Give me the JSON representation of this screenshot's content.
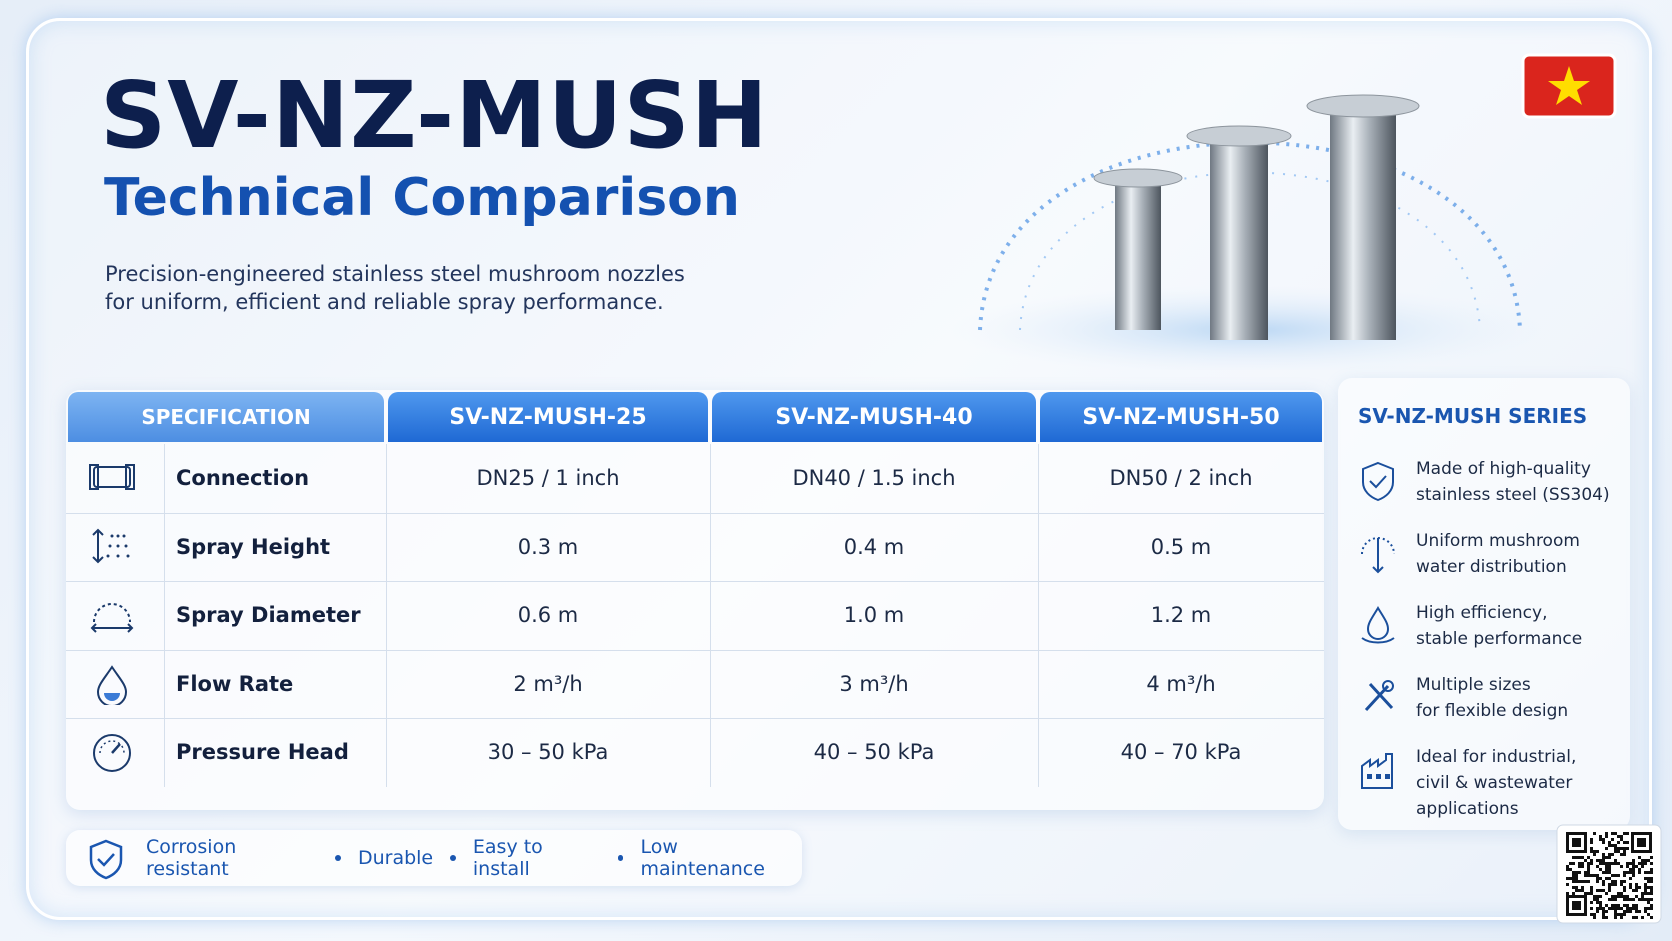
{
  "header": {
    "title": "SV-NZ-MUSH",
    "subtitle": "Technical Comparison",
    "description": [
      "Precision-engineered stainless steel mushroom nozzles",
      "for uniform, efficient and reliable spray performance."
    ]
  },
  "table": {
    "columns": [
      "SPECIFICATION",
      "SV-NZ-MUSH-25",
      "SV-NZ-MUSH-40",
      "SV-NZ-MUSH-50"
    ],
    "rows": [
      [
        "Connection",
        "DN25 / 1 inch",
        "DN40 / 1.5 inch",
        "DN50 / 2 inch"
      ],
      [
        "Spray Height",
        "0.3 m",
        "0.4 m",
        "0.5 m"
      ],
      [
        "Spray Diameter",
        "0.6 m",
        "1.0 m",
        "1.2 m"
      ],
      [
        "Flow Rate",
        "2 m³/h",
        "3 m³/h",
        "4 m³/h"
      ],
      [
        "Pressure Head",
        "30 – 50 kPa",
        "40 – 50 kPa",
        "40 – 70 kPa"
      ]
    ]
  },
  "series": {
    "title": "SV-NZ-MUSH SERIES",
    "features": [
      [
        "Made of high-quality",
        "stainless steel (SS304)"
      ],
      [
        "Uniform mushroom",
        "water distribution"
      ],
      [
        "High efficiency,",
        "stable performance"
      ],
      [
        "Multiple sizes",
        "for flexible design"
      ],
      [
        "Ideal for industrial,",
        "civil & wastewater",
        "applications"
      ]
    ]
  },
  "footer": {
    "features": [
      "Corrosion resistant",
      "Durable",
      "Easy to install",
      "Low maintenance"
    ]
  }
}
